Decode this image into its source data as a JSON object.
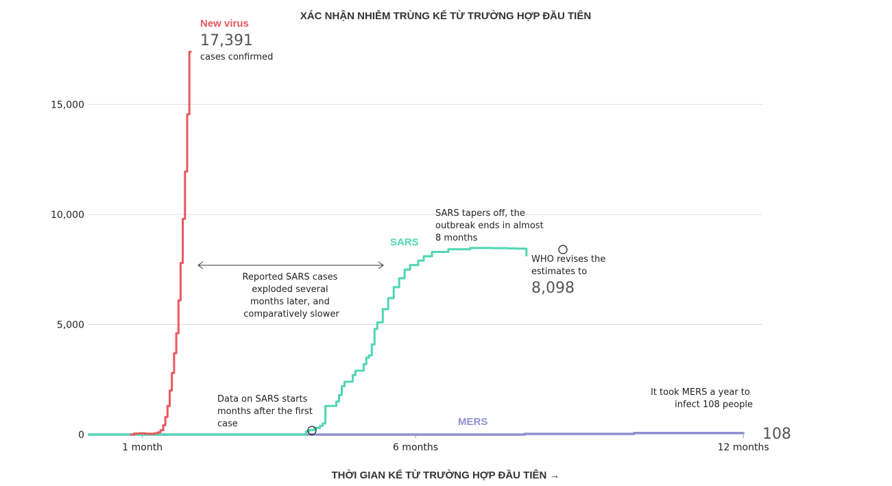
{
  "chart_data": {
    "type": "line",
    "title": "XÁC NHẬN NHIỄM TRÙNG KỂ TỪ TRƯỜNG HỢP ĐẦU TIÊN",
    "xlabel": "THỜI GIAN KỂ TỪ TRƯỜNG HỢP ĐẦU TIÊN →",
    "ylabel": "",
    "xlim": [
      0,
      12.35
    ],
    "ylim": [
      0,
      18500
    ],
    "grid": true,
    "y_ticks": [
      {
        "value": 0,
        "label": "0"
      },
      {
        "value": 5000,
        "label": "5,000"
      },
      {
        "value": 10000,
        "label": "10,000"
      },
      {
        "value": 15000,
        "label": "15,000"
      }
    ],
    "x_ticks": [
      {
        "value": 1,
        "label": "1 month"
      },
      {
        "value": 6,
        "label": "6 months"
      },
      {
        "value": 12,
        "label": "12 months"
      }
    ],
    "series": [
      {
        "name": "New virus",
        "color": "#e8585e",
        "end_value": "17,391",
        "end_caption": "cases confirmed",
        "x": [
          0.78,
          0.85,
          0.95,
          1.05,
          1.15,
          1.22,
          1.28,
          1.33,
          1.38,
          1.42,
          1.46,
          1.5,
          1.54,
          1.58,
          1.62,
          1.66,
          1.7,
          1.74,
          1.78,
          1.82,
          1.86,
          1.9
        ],
        "y": [
          0,
          50,
          60,
          45,
          40,
          60,
          100,
          200,
          430,
          800,
          1300,
          2000,
          2800,
          3700,
          4600,
          6100,
          7800,
          9800,
          11950,
          14550,
          17391,
          17391
        ]
      },
      {
        "name": "SARS",
        "color": "#4fd6b2",
        "x": [
          0,
          1,
          2,
          3,
          4,
          4.05,
          4.15,
          4.25,
          4.3,
          4.35,
          4.55,
          4.6,
          4.65,
          4.7,
          4.85,
          4.9,
          5.05,
          5.1,
          5.15,
          5.2,
          5.25,
          5.3,
          5.4,
          5.5,
          5.6,
          5.7,
          5.8,
          5.9,
          6.05,
          6.15,
          6.3,
          6.6,
          7,
          7.4,
          7.7,
          7.85,
          8.0,
          8.03
        ],
        "y": [
          0,
          0,
          0,
          0,
          150,
          200,
          300,
          400,
          500,
          1300,
          1500,
          1800,
          2200,
          2400,
          2700,
          2900,
          3200,
          3500,
          3600,
          4100,
          4800,
          5100,
          5700,
          6200,
          6700,
          7100,
          7500,
          7700,
          7900,
          8100,
          8300,
          8420,
          8480,
          8470,
          8460,
          8450,
          8450,
          8098
        ]
      },
      {
        "name": "MERS",
        "color": "#8f8fcf",
        "end_value": "108",
        "x": [
          0,
          6.3,
          8,
          10,
          12
        ],
        "y": [
          0,
          0,
          30,
          70,
          108
        ]
      }
    ],
    "annotations": [
      {
        "lines": [
          "Reported SARS cases",
          "exploded several",
          "months later, and",
          "comparatively slower"
        ]
      },
      {
        "lines": [
          "SARS tapers off, the",
          "outbreak ends in almost",
          "8 months"
        ]
      },
      {
        "lines": [
          "WHO revises the",
          "estimates to"
        ],
        "value": "8,098"
      },
      {
        "lines": [
          "Data on SARS starts",
          "months after the first",
          "case"
        ]
      },
      {
        "lines": [
          "It took MERS a year to",
          "infect 108 people"
        ]
      }
    ]
  }
}
